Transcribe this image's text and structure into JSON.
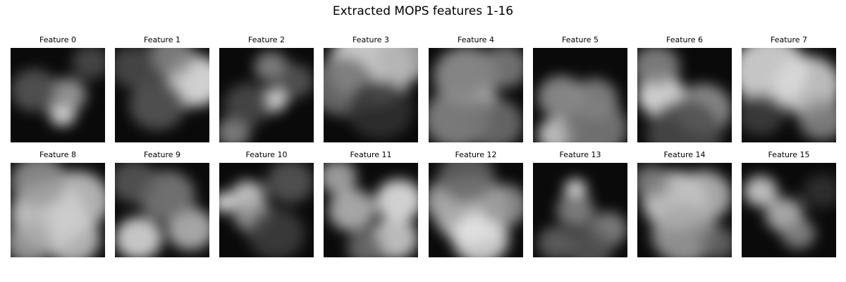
{
  "title": "Extracted MOPS features 1-16",
  "features": [
    {
      "label": "Feature 0",
      "blobs": [
        [
          0.55,
          0.7,
          0.14,
          0.95
        ],
        [
          0.6,
          0.5,
          0.2,
          0.65
        ],
        [
          0.25,
          0.45,
          0.25,
          0.35
        ],
        [
          0.85,
          0.15,
          0.2,
          0.3
        ]
      ]
    },
    {
      "label": "Feature 1",
      "blobs": [
        [
          0.85,
          0.35,
          0.3,
          0.95
        ],
        [
          0.6,
          0.1,
          0.25,
          0.55
        ],
        [
          0.2,
          0.2,
          0.25,
          0.3
        ],
        [
          0.45,
          0.6,
          0.3,
          0.35
        ]
      ]
    },
    {
      "label": "Feature 2",
      "blobs": [
        [
          0.58,
          0.55,
          0.14,
          0.95
        ],
        [
          0.55,
          0.2,
          0.18,
          0.55
        ],
        [
          0.15,
          0.9,
          0.18,
          0.55
        ],
        [
          0.8,
          0.35,
          0.2,
          0.35
        ],
        [
          0.3,
          0.6,
          0.25,
          0.3
        ]
      ]
    },
    {
      "label": "Feature 3",
      "blobs": [
        [
          0.5,
          0.2,
          0.45,
          0.9
        ],
        [
          0.85,
          0.1,
          0.3,
          0.7
        ],
        [
          0.2,
          0.4,
          0.35,
          0.45
        ],
        [
          0.6,
          0.65,
          0.35,
          0.2
        ]
      ]
    },
    {
      "label": "Feature 4",
      "blobs": [
        [
          0.58,
          0.55,
          0.14,
          0.95
        ],
        [
          0.4,
          0.3,
          0.35,
          0.6
        ],
        [
          0.3,
          0.75,
          0.35,
          0.55
        ],
        [
          0.8,
          0.2,
          0.25,
          0.5
        ],
        [
          0.7,
          0.8,
          0.3,
          0.45
        ]
      ]
    },
    {
      "label": "Feature 5",
      "blobs": [
        [
          0.3,
          0.52,
          0.25,
          0.6
        ],
        [
          0.65,
          0.55,
          0.25,
          0.55
        ],
        [
          0.25,
          0.92,
          0.2,
          0.85
        ],
        [
          0.65,
          0.85,
          0.35,
          0.5
        ]
      ]
    },
    {
      "label": "Feature 6",
      "blobs": [
        [
          0.25,
          0.5,
          0.25,
          0.95
        ],
        [
          0.2,
          0.2,
          0.25,
          0.55
        ],
        [
          0.7,
          0.65,
          0.3,
          0.6
        ],
        [
          0.5,
          0.9,
          0.4,
          0.3
        ]
      ]
    },
    {
      "label": "Feature 7",
      "blobs": [
        [
          0.3,
          0.25,
          0.4,
          0.9
        ],
        [
          0.7,
          0.4,
          0.35,
          0.85
        ],
        [
          0.85,
          0.75,
          0.25,
          0.55
        ],
        [
          0.2,
          0.7,
          0.25,
          0.25
        ]
      ]
    },
    {
      "label": "Feature 8",
      "blobs": [
        [
          0.4,
          0.55,
          0.4,
          0.85
        ],
        [
          0.7,
          0.4,
          0.35,
          0.8
        ],
        [
          0.65,
          0.8,
          0.3,
          0.8
        ],
        [
          0.3,
          0.2,
          0.3,
          0.6
        ],
        [
          0.2,
          0.85,
          0.25,
          0.65
        ]
      ]
    },
    {
      "label": "Feature 9",
      "blobs": [
        [
          0.25,
          0.8,
          0.25,
          0.9
        ],
        [
          0.8,
          0.7,
          0.25,
          0.75
        ],
        [
          0.55,
          0.35,
          0.3,
          0.5
        ],
        [
          0.2,
          0.2,
          0.25,
          0.35
        ]
      ]
    },
    {
      "label": "Feature 10",
      "blobs": [
        [
          0.05,
          0.42,
          0.12,
          0.95
        ],
        [
          0.3,
          0.35,
          0.18,
          0.85
        ],
        [
          0.35,
          0.55,
          0.2,
          0.65
        ],
        [
          0.75,
          0.2,
          0.25,
          0.35
        ],
        [
          0.6,
          0.75,
          0.3,
          0.25
        ]
      ]
    },
    {
      "label": "Feature 11",
      "blobs": [
        [
          0.8,
          0.4,
          0.25,
          0.95
        ],
        [
          0.75,
          0.8,
          0.25,
          0.85
        ],
        [
          0.3,
          0.5,
          0.25,
          0.75
        ],
        [
          0.15,
          0.15,
          0.2,
          0.7
        ],
        [
          0.45,
          0.9,
          0.2,
          0.45
        ]
      ]
    },
    {
      "label": "Feature 12",
      "blobs": [
        [
          0.45,
          0.5,
          0.4,
          0.8
        ],
        [
          0.55,
          0.8,
          0.3,
          0.9
        ],
        [
          0.2,
          0.4,
          0.25,
          0.65
        ],
        [
          0.8,
          0.45,
          0.25,
          0.6
        ],
        [
          0.4,
          0.15,
          0.3,
          0.4
        ]
      ]
    },
    {
      "label": "Feature 13",
      "blobs": [
        [
          0.45,
          0.28,
          0.12,
          0.95
        ],
        [
          0.45,
          0.5,
          0.2,
          0.55
        ],
        [
          0.8,
          0.7,
          0.2,
          0.55
        ],
        [
          0.25,
          0.85,
          0.2,
          0.4
        ],
        [
          0.6,
          0.9,
          0.25,
          0.35
        ]
      ]
    },
    {
      "label": "Feature 14",
      "blobs": [
        [
          0.4,
          0.4,
          0.35,
          0.85
        ],
        [
          0.7,
          0.35,
          0.3,
          0.75
        ],
        [
          0.5,
          0.75,
          0.35,
          0.65
        ],
        [
          0.15,
          0.2,
          0.2,
          0.5
        ],
        [
          0.85,
          0.85,
          0.2,
          0.4
        ]
      ]
    },
    {
      "label": "Feature 15",
      "blobs": [
        [
          0.2,
          0.3,
          0.18,
          0.85
        ],
        [
          0.45,
          0.55,
          0.2,
          0.75
        ],
        [
          0.6,
          0.75,
          0.18,
          0.55
        ],
        [
          0.85,
          0.3,
          0.2,
          0.2
        ]
      ]
    }
  ]
}
